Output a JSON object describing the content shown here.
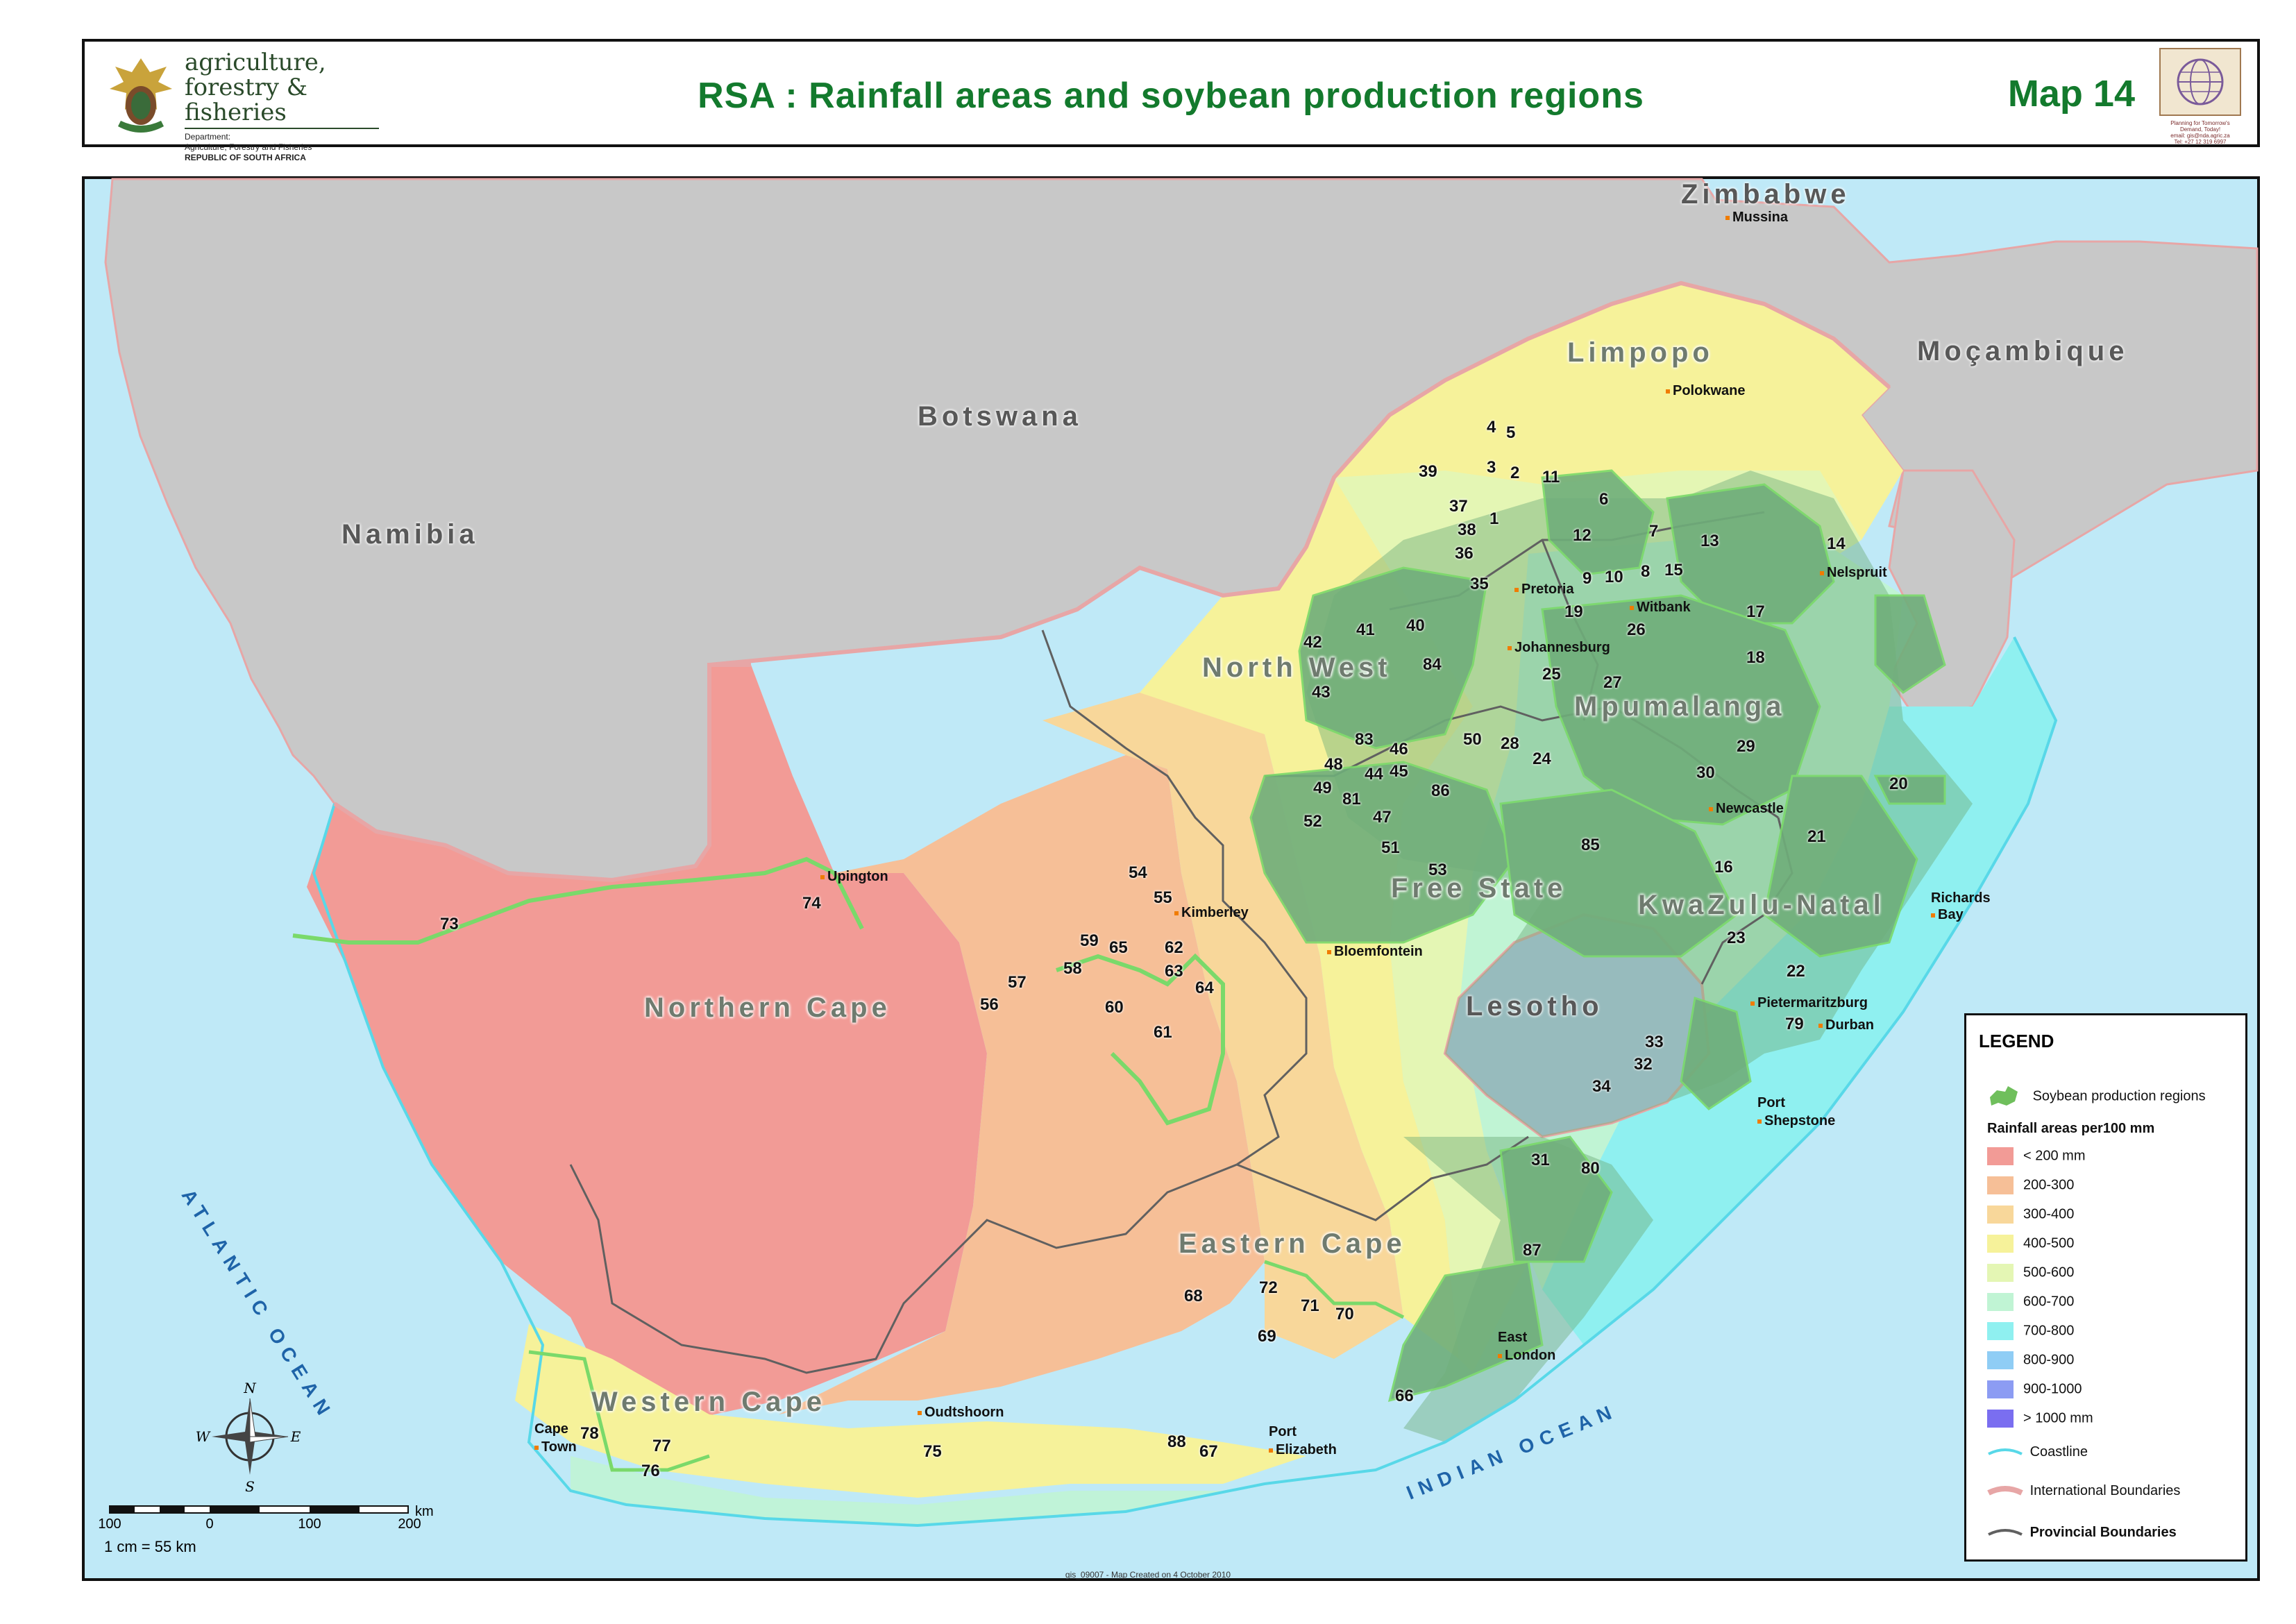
{
  "header": {
    "department": {
      "line1": "agriculture,",
      "line2": "forestry & fisheries",
      "line3": "Department:",
      "line4": "Agriculture, Forestry and Fisheries",
      "line5": "REPUBLIC OF SOUTH AFRICA"
    },
    "title": "RSA : Rainfall areas and soybean production regions",
    "map_number": "Map 14",
    "right_logo_icon": "globe-icon",
    "right_logo_text": "Planning for Tomorrow's Demand, Today!",
    "right_logo_email": "email: gis@nda.agric.za",
    "right_logo_phone": "Tel: +27 12 319 6997"
  },
  "colors": {
    "title": "#137a2d",
    "soybean": "#6fbf5c",
    "rain_lt200": "#f29b96",
    "rain_200_300": "#f6bf97",
    "rain_300_400": "#f8d79a",
    "rain_400_500": "#f6f29a",
    "rain_500_600": "#e4f6b4",
    "rain_600_700": "#c0f4d4",
    "rain_700_800": "#8ff0f0",
    "rain_800_900": "#8fcdf5",
    "rain_900_1000": "#8c9cf3",
    "rain_gt1000": "#7a6ef0",
    "neighbour": "#c8c8c8",
    "ocean": "#bfe9f7"
  },
  "map": {
    "countries": {
      "namibia": "Namibia",
      "botswana": "Botswana",
      "zimbabwe": "Zimbabwe",
      "mocambique": "Moçambique",
      "lesotho": "Lesotho"
    },
    "provinces": {
      "limpopo": "Limpopo",
      "north_west": "North West",
      "mpumalanga": "Mpumalanga",
      "free_state": "Free State",
      "kwazulu_natal": "KwaZulu-Natal",
      "northern_cape": "Northern Cape",
      "eastern_cape": "Eastern Cape",
      "western_cape": "Western Cape"
    },
    "oceans": {
      "atlantic": "ATLANTIC OCEAN",
      "indian": "INDIAN OCEAN"
    },
    "towns": {
      "mussina": "Mussina",
      "polokwane": "Polokwane",
      "nelspruit": "Nelspruit",
      "pretoria": "Pretoria",
      "witbank": "Witbank",
      "johannesburg": "Johannesburg",
      "newcastle": "Newcastle",
      "richards_bay_1": "Richards",
      "richards_bay_2": "Bay",
      "pietermaritzburg": "Pietermaritzburg",
      "durban": "Durban",
      "port_shepstone_1": "Port",
      "port_shepstone_2": "Shepstone",
      "kimberley": "Kimberley",
      "bloemfontein": "Bloemfontein",
      "upington": "Upington",
      "east_london_1": "East",
      "east_london_2": "London",
      "port_elizabeth_1": "Port",
      "port_elizabeth_2": "Elizabeth",
      "oudtshoorn": "Oudtshoorn",
      "cape_town_1": "Cape",
      "cape_town_2": "Town"
    },
    "regions": {
      "r1": "1",
      "r2": "2",
      "r3": "3",
      "r4": "4",
      "r5": "5",
      "r6": "6",
      "r7": "7",
      "r8": "8",
      "r9": "9",
      "r10": "10",
      "r11": "11",
      "r12": "12",
      "r13": "13",
      "r14": "14",
      "r15": "15",
      "r16": "16",
      "r17": "17",
      "r18": "18",
      "r19": "19",
      "r20": "20",
      "r21": "21",
      "r22": "22",
      "r23": "23",
      "r24": "24",
      "r25": "25",
      "r26": "26",
      "r27": "27",
      "r28": "28",
      "r29": "29",
      "r30": "30",
      "r31": "31",
      "r32": "32",
      "r33": "33",
      "r34": "34",
      "r35": "35",
      "r36": "36",
      "r37": "37",
      "r38": "38",
      "r39": "39",
      "r40": "40",
      "r41": "41",
      "r42": "42",
      "r43": "43",
      "r44": "44",
      "r45": "45",
      "r46": "46",
      "r47": "47",
      "r48": "48",
      "r49": "49",
      "r50": "50",
      "r51": "51",
      "r52": "52",
      "r53": "53",
      "r54": "54",
      "r55": "55",
      "r56": "56",
      "r57": "57",
      "r58": "58",
      "r59": "59",
      "r60": "60",
      "r61": "61",
      "r62": "62",
      "r63": "63",
      "r64": "64",
      "r65": "65",
      "r66": "66",
      "r67": "67",
      "r68": "68",
      "r69": "69",
      "r70": "70",
      "r71": "71",
      "r72": "72",
      "r73": "73",
      "r74": "74",
      "r75": "75",
      "r76": "76",
      "r77": "77",
      "r78": "78",
      "r79": "79",
      "r80": "80",
      "r81": "81",
      "r83": "83",
      "r84": "84",
      "r85": "85",
      "r86": "86",
      "r87": "87",
      "r88": "88"
    }
  },
  "legend": {
    "title": "LEGEND",
    "soybean": "Soybean production regions",
    "rainfall_heading": "Rainfall areas per100 mm",
    "classes": [
      "< 200 mm",
      "200-300",
      "300-400",
      "400-500",
      "500-600",
      "600-700",
      "700-800",
      "800-900",
      "900-1000",
      "> 1000 mm"
    ],
    "coastline": "Coastline",
    "international": "International Boundaries",
    "provincial": "Provincial Boundaries"
  },
  "compass": {
    "n": "N",
    "e": "E",
    "s": "S",
    "w": "W"
  },
  "scale": {
    "ticks": [
      "100",
      "0",
      "100",
      "200"
    ],
    "unit": "km",
    "ratio": "1 cm = 55 km"
  },
  "footer": "gis_09007 - Map Created on 4 October 2010"
}
